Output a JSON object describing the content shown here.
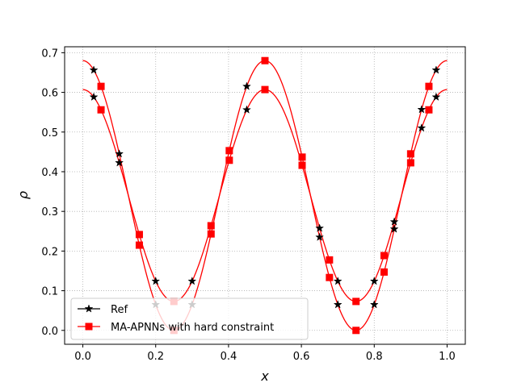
{
  "chart_data": {
    "type": "line",
    "xlabel": "x",
    "ylabel": "ρ",
    "xlim": [
      -0.05,
      1.05
    ],
    "ylim": [
      -0.035,
      0.715
    ],
    "xticks": [
      "0.0",
      "0.2",
      "0.4",
      "0.6",
      "0.8",
      "1.0"
    ],
    "yticks": [
      "0.0",
      "0.1",
      "0.2",
      "0.3",
      "0.4",
      "0.5",
      "0.6",
      "0.7"
    ],
    "grid": true,
    "legend_position": "lower-left",
    "curves": [
      {
        "baseline": 0.34,
        "amplitude": 0.34
      },
      {
        "baseline": 0.34,
        "amplitude": 0.267
      }
    ],
    "series": [
      {
        "name": "Ref",
        "color": "#000000",
        "marker": "star",
        "marker_x": [
          0.03,
          0.1,
          0.2,
          0.3,
          0.45,
          0.65,
          0.7,
          0.8,
          0.855,
          0.93,
          0.97
        ]
      },
      {
        "name": "MA-APNNs with hard constraint",
        "color": "#ff0000",
        "marker": "square",
        "marker_x": [
          0.05,
          0.155,
          0.25,
          0.352,
          0.402,
          0.5,
          0.602,
          0.677,
          0.75,
          0.827,
          0.9,
          0.95
        ]
      }
    ]
  }
}
